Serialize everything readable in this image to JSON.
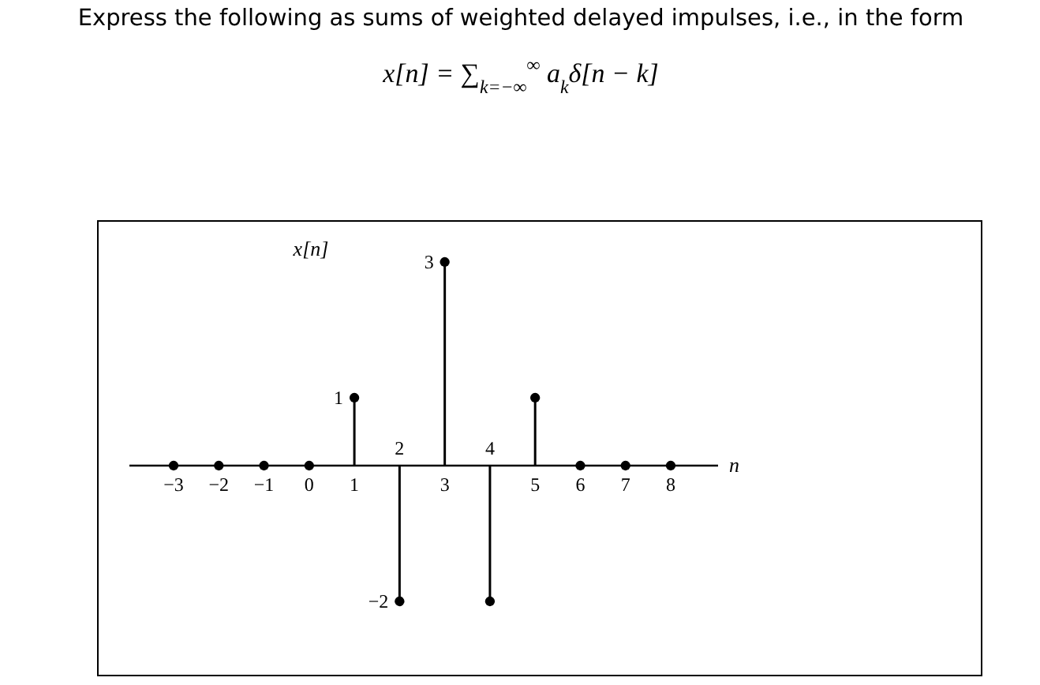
{
  "chart_data": {
    "type": "lollipop",
    "title": "Express the following as sums of weighted delayed impulses, i.e., in the form",
    "subtitle": "x[n] = ∑$_{k=−∞}$$^{∞}$ a$_{k}$δ[n − k]",
    "ylabel": "x[n]",
    "xlabel": "n",
    "categories": [
      "−3",
      "−2",
      "−1",
      "0",
      "1",
      "2",
      "3",
      "4",
      "5",
      "6",
      "7",
      "8"
    ],
    "values": [
      0,
      0,
      0,
      0,
      1,
      -2,
      3,
      -2,
      1,
      0,
      0,
      0
    ],
    "value_labels": [
      null,
      null,
      null,
      null,
      "1",
      "−2",
      "3",
      null,
      null,
      null,
      null,
      null
    ],
    "color": "#000000",
    "marker": "circle"
  }
}
